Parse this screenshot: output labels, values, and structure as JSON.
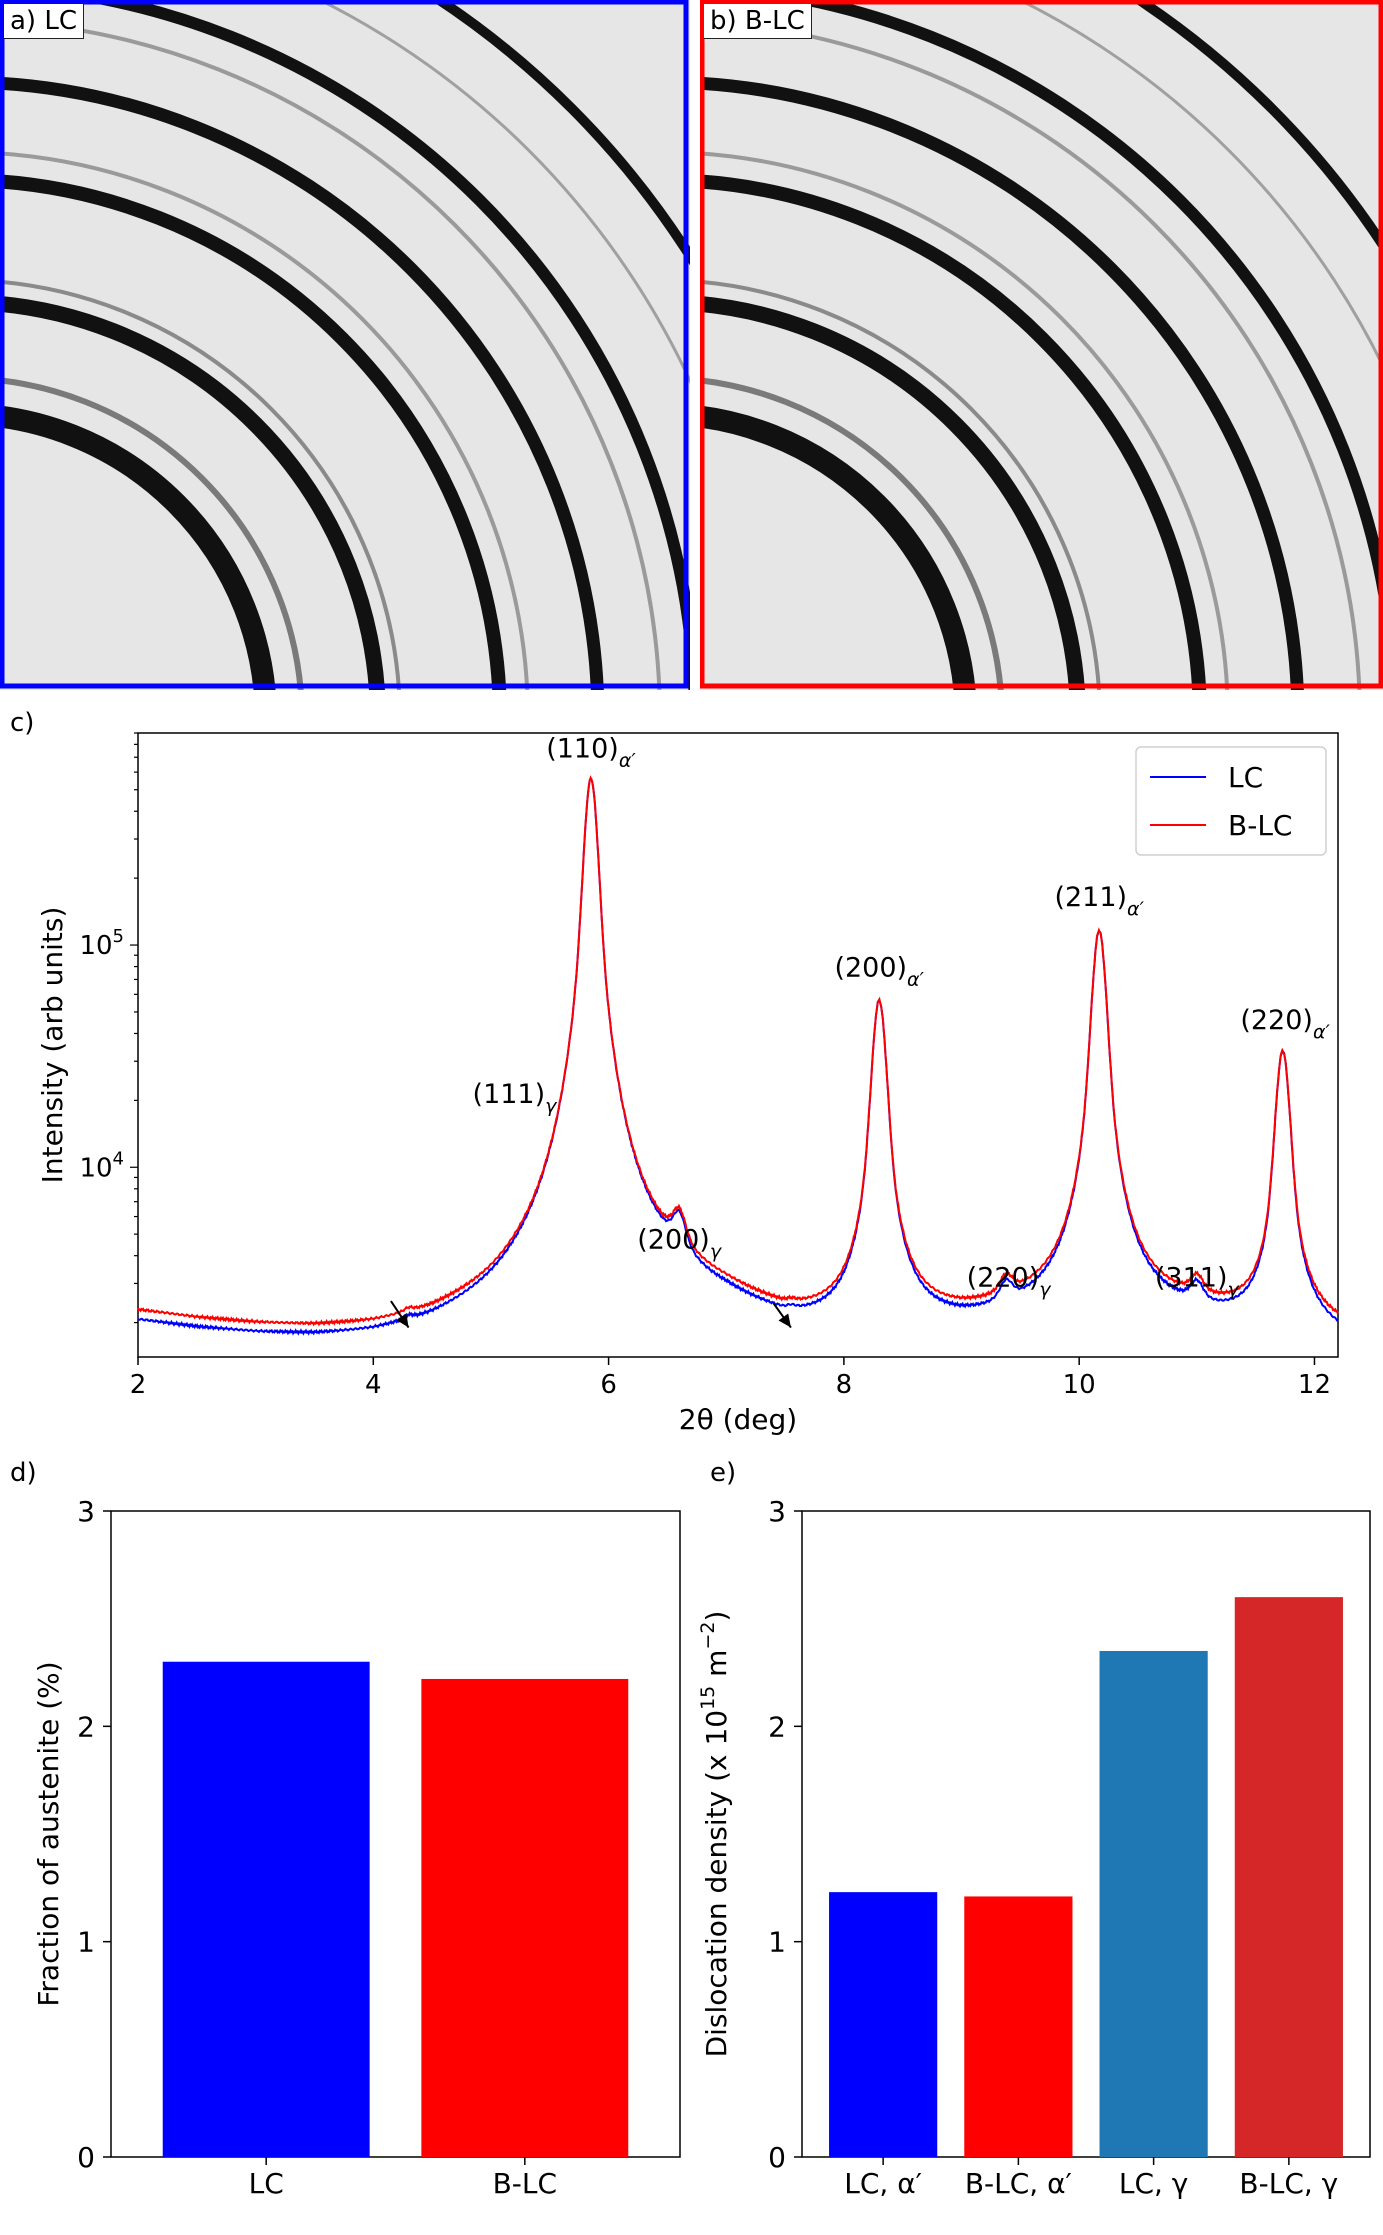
{
  "panels": {
    "a_label": "a) LC",
    "b_label": "b) B-LC",
    "c_letter": "c)",
    "d_letter": "d)",
    "e_letter": "e)"
  },
  "colors": {
    "LC": "#0000ff",
    "B-LC": "#ff0000",
    "gamma_LC": "#1f77b4",
    "gamma_BLC": "#d62728",
    "ring_background": "#e4e4e4",
    "ring_dark": "#111111"
  },
  "chart_data": [
    {
      "id": "c",
      "type": "line",
      "xlabel": "2θ (deg)",
      "ylabel": "Intensity (arb units)",
      "xlim": [
        2,
        12.2
      ],
      "ylim": [
        1400,
        900000
      ],
      "y_scale": "log",
      "xticks": [
        2,
        4,
        6,
        8,
        10,
        12
      ],
      "yticks": [
        {
          "value": 10000,
          "base": "10",
          "exp": "4"
        },
        {
          "value": 100000,
          "base": "10",
          "exp": "5"
        }
      ],
      "legend": {
        "position": "top-right",
        "entries": [
          "LC",
          "B-LC"
        ]
      },
      "background_level": [
        [
          2,
          2200
        ],
        [
          2.5,
          2000
        ],
        [
          3,
          1850
        ],
        [
          3.5,
          1740
        ],
        [
          4,
          1690
        ],
        [
          4.5,
          1720
        ],
        [
          5,
          1850
        ],
        [
          5.5,
          2050
        ],
        [
          6,
          2300
        ],
        [
          6.5,
          2450
        ],
        [
          7,
          2200
        ],
        [
          7.5,
          1800
        ],
        [
          8,
          1750
        ],
        [
          9,
          1950
        ],
        [
          10,
          2300
        ],
        [
          11,
          2150
        ],
        [
          12.2,
          1750
        ]
      ],
      "peaks": [
        {
          "x": 4.3,
          "height": 80,
          "width": 0.05
        },
        {
          "x": 5.85,
          "height": 560000,
          "width": 0.062
        },
        {
          "x": 6.6,
          "height": 1850,
          "width": 0.07
        },
        {
          "x": 7.55,
          "height": 60,
          "width": 0.05
        },
        {
          "x": 8.3,
          "height": 54500,
          "width": 0.065
        },
        {
          "x": 9.38,
          "height": 560,
          "width": 0.07
        },
        {
          "x": 10.17,
          "height": 114000,
          "width": 0.065
        },
        {
          "x": 11.0,
          "height": 550,
          "width": 0.07
        },
        {
          "x": 11.73,
          "height": 31500,
          "width": 0.065
        }
      ],
      "series": [
        {
          "name": "LC",
          "offset_factor": 0.9
        },
        {
          "name": "B-LC",
          "offset_factor": 1.0
        }
      ],
      "peak_labels": [
        {
          "text": "(110)",
          "sub": "α′",
          "x": 5.85,
          "y": 700000
        },
        {
          "text": "(111)",
          "sub": "γ",
          "x": 5.2,
          "y": 19500
        },
        {
          "text": "(200)",
          "sub": "γ",
          "x": 6.6,
          "y": 4300
        },
        {
          "text": "(200)",
          "sub": "α′",
          "x": 8.3,
          "y": 72000
        },
        {
          "text": "(220)",
          "sub": "γ",
          "x": 9.4,
          "y": 2900
        },
        {
          "text": "(211)",
          "sub": "α′",
          "x": 10.17,
          "y": 150000
        },
        {
          "text": "(311)",
          "sub": "γ",
          "x": 11.0,
          "y": 2900
        },
        {
          "text": "(220)",
          "sub": "α′",
          "x": 11.75,
          "y": 42000
        }
      ],
      "arrows": [
        {
          "from": [
            4.15,
            2500
          ],
          "to": [
            4.3,
            1900
          ]
        },
        {
          "from": [
            7.4,
            2450
          ],
          "to": [
            7.55,
            1900
          ]
        }
      ]
    },
    {
      "id": "d",
      "type": "bar",
      "categories": [
        "LC",
        "B-LC"
      ],
      "values": [
        2.3,
        2.22
      ],
      "ylabel": "Fraction of austenite (%)",
      "ylim": [
        0,
        3
      ],
      "yticks": [
        0,
        1,
        2,
        3
      ]
    },
    {
      "id": "e",
      "type": "bar",
      "categories": [
        "LC, α′",
        "B-LC, α′",
        "LC, γ",
        "B-LC, γ"
      ],
      "values": [
        1.23,
        1.21,
        2.35,
        2.6
      ],
      "ylabel_main": "Dislocation density (x 10",
      "ylabel_exp": "15",
      "ylabel_mid": " m",
      "ylabel_exp2": "−2",
      "ylabel_end": ")",
      "ylim": [
        0,
        3
      ],
      "yticks": [
        0,
        1,
        2,
        3
      ]
    }
  ]
}
